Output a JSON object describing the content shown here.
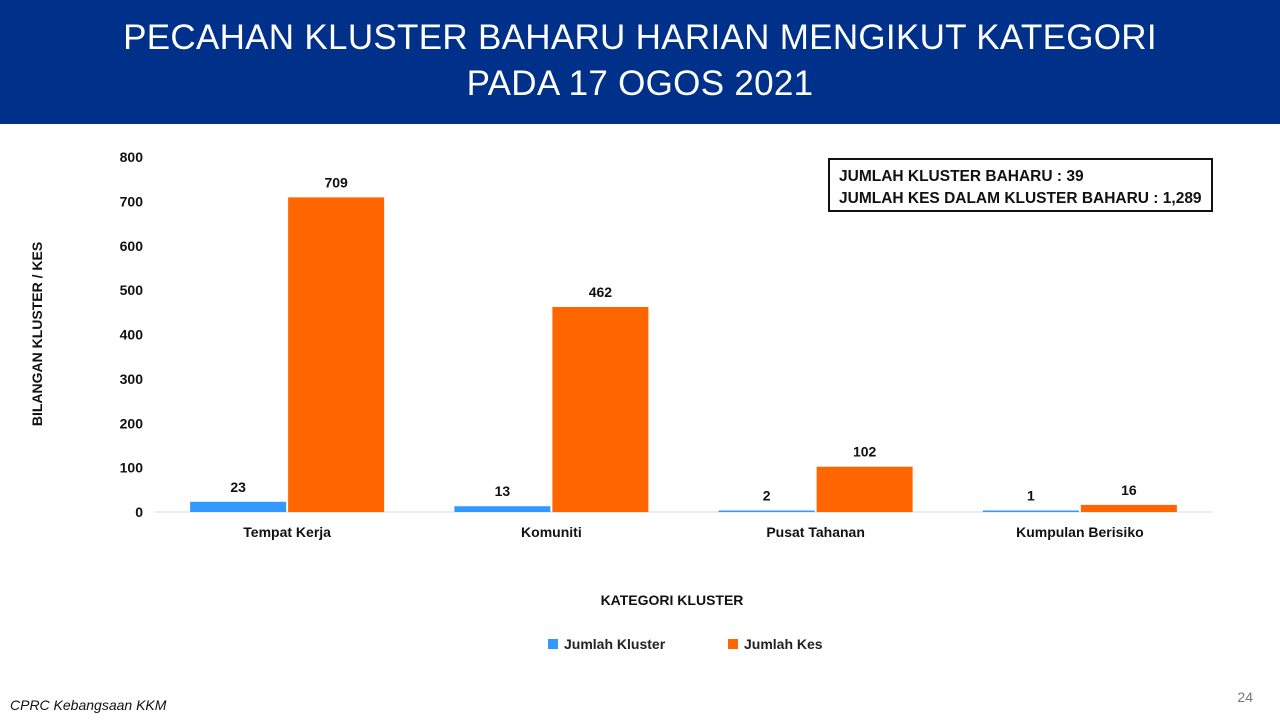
{
  "header": {
    "title_line1": "PECAHAN KLUSTER BAHARU HARIAN MENGIKUT KATEGORI",
    "title_line2": "PADA 17 OGOS 2021",
    "background": "#00318a"
  },
  "summary": {
    "line1": "JUMLAH KLUSTER BAHARU : 39",
    "line2": "JUMLAH KES DALAM KLUSTER BAHARU : 1,289"
  },
  "footer": {
    "source": "CPRC Kebangsaan KKM",
    "page_number": "24"
  },
  "chart_data": {
    "type": "bar",
    "xlabel": "KATEGORI KLUSTER",
    "ylabel": "BILANGAN KLUSTER / KES",
    "ylim": [
      0,
      800
    ],
    "yticks": [
      0,
      100,
      200,
      300,
      400,
      500,
      600,
      700,
      800
    ],
    "grid": false,
    "legend_position": "bottom",
    "categories": [
      "Tempat Kerja",
      "Komuniti",
      "Pusat Tahanan",
      "Kumpulan Berisiko"
    ],
    "series": [
      {
        "name": "Jumlah Kluster",
        "color": "#3399ff",
        "values": [
          23,
          13,
          2,
          1
        ]
      },
      {
        "name": "Jumlah Kes",
        "color": "#ff6600",
        "values": [
          709,
          462,
          102,
          16
        ]
      }
    ]
  }
}
